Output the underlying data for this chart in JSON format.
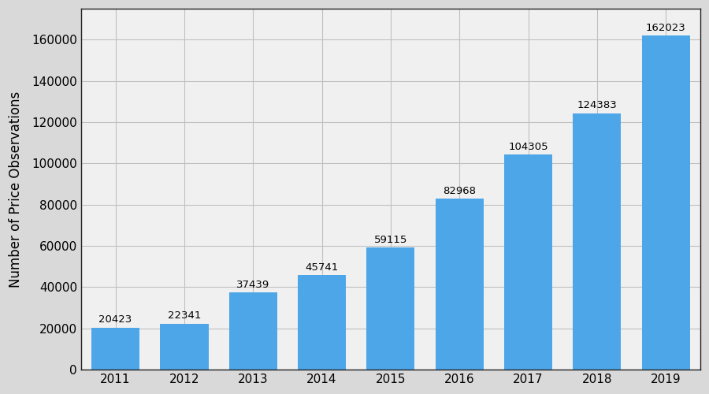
{
  "categories": [
    "2011",
    "2012",
    "2013",
    "2014",
    "2015",
    "2016",
    "2017",
    "2018",
    "2019"
  ],
  "values": [
    20423,
    22341,
    37439,
    45741,
    59115,
    82968,
    104305,
    124383,
    162023
  ],
  "bar_color": "#4da6e8",
  "ylabel": "Number of Price Observations",
  "ylim": [
    0,
    175000
  ],
  "yticks": [
    0,
    20000,
    40000,
    60000,
    80000,
    100000,
    120000,
    140000,
    160000
  ],
  "bar_label_fontsize": 9.5,
  "axis_label_fontsize": 12,
  "tick_fontsize": 11,
  "figure_background_color": "#d9d9d9",
  "plot_background_color": "#f0f0f0",
  "grid_color": "#c0c0c0",
  "spine_color": "#222222",
  "bar_width": 0.7
}
